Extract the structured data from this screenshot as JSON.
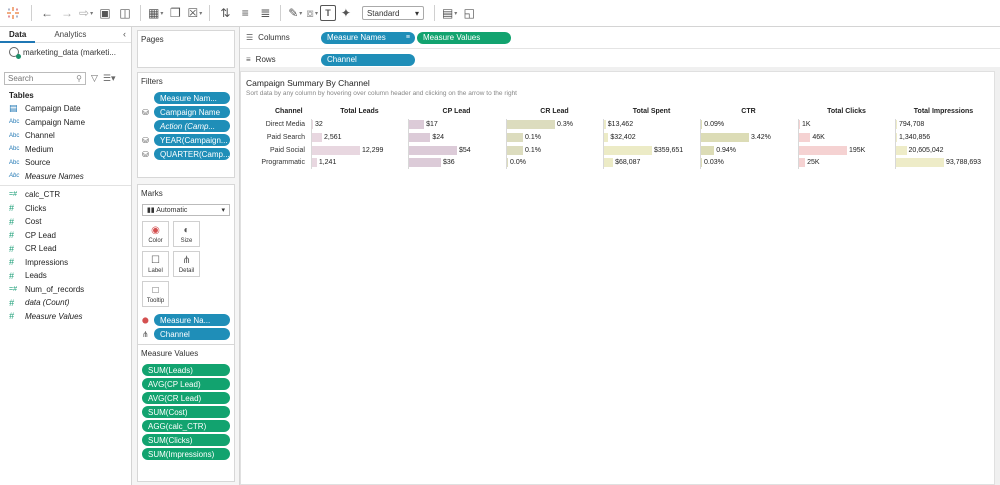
{
  "toolbar": {
    "fit_select": "Standard"
  },
  "data_pane": {
    "tabs": [
      "Data",
      "Analytics"
    ],
    "datasource": "marketing_data (marketi...",
    "search_placeholder": "Search",
    "tables_label": "Tables",
    "dimensions": [
      {
        "type": "date",
        "name": "Campaign Date",
        "italic": false
      },
      {
        "type": "Abc",
        "name": "Campaign Name",
        "italic": false
      },
      {
        "type": "Abc",
        "name": "Channel",
        "italic": false
      },
      {
        "type": "Abc",
        "name": "Medium",
        "italic": false
      },
      {
        "type": "Abc",
        "name": "Source",
        "italic": false
      },
      {
        "type": "Abc",
        "name": "Measure Names",
        "italic": true
      }
    ],
    "measures": [
      {
        "type": "=#",
        "name": "calc_CTR",
        "italic": false
      },
      {
        "type": "#",
        "name": "Clicks",
        "italic": false
      },
      {
        "type": "#",
        "name": "Cost",
        "italic": false
      },
      {
        "type": "#",
        "name": "CP Lead",
        "italic": false
      },
      {
        "type": "#",
        "name": "CR Lead",
        "italic": false
      },
      {
        "type": "#",
        "name": "Impressions",
        "italic": false
      },
      {
        "type": "#",
        "name": "Leads",
        "italic": false
      },
      {
        "type": "=#",
        "name": "Num_of_records",
        "italic": false
      },
      {
        "type": "#",
        "name": "data (Count)",
        "italic": true
      },
      {
        "type": "#",
        "name": "Measure Values",
        "italic": true
      }
    ]
  },
  "pages_label": "Pages",
  "filters": {
    "label": "Filters",
    "pills": [
      {
        "text": "Measure Nam...",
        "italic": false,
        "icon": ""
      },
      {
        "text": "Campaign Name",
        "italic": false,
        "icon": "db"
      },
      {
        "text": "Action (Camp...",
        "italic": true,
        "icon": ""
      },
      {
        "text": "YEAR(Campaign...",
        "italic": false,
        "icon": "db"
      },
      {
        "text": "QUARTER(Camp...",
        "italic": false,
        "icon": "db"
      }
    ]
  },
  "marks": {
    "label": "Marks",
    "type": "Automatic",
    "buttons": [
      "Color",
      "Size",
      "Label",
      "Detail",
      "Tooltip"
    ],
    "pills": [
      {
        "text": "Measure Na...",
        "icon": "color"
      },
      {
        "text": "Channel",
        "icon": "detail"
      }
    ]
  },
  "measure_values": {
    "label": "Measure Values",
    "pills": [
      "SUM(Leads)",
      "AVG(CP Lead)",
      "AVG(CR Lead)",
      "SUM(Cost)",
      "AGG(calc_CTR)",
      "SUM(Clicks)",
      "SUM(Impressions)"
    ]
  },
  "shelves": {
    "columns_label": "Columns",
    "rows_label": "Rows",
    "columns": [
      {
        "text": "Measure Names",
        "color": "blue"
      },
      {
        "text": "Measure Values",
        "color": "green"
      }
    ],
    "rows": [
      {
        "text": "Channel",
        "color": "blue"
      }
    ]
  },
  "chart_data": {
    "type": "bar",
    "title": "Campaign Summary By Channel",
    "subtitle": "Sort data by any column by hovering over column header and clicking on the arrow to the right",
    "row_header": "Channel",
    "categories": [
      "Direct Media",
      "Paid Search",
      "Paid Social",
      "Programmatic"
    ],
    "series": [
      {
        "name": "Total Leads",
        "color": "#e8d7e0",
        "values": [
          32,
          2561,
          12299,
          1241
        ],
        "labels": [
          "32",
          "2,561",
          "12,299",
          "1,241"
        ],
        "max": 12299
      },
      {
        "name": "CP Lead",
        "color": "#dccbd8",
        "values": [
          17,
          24,
          54,
          36
        ],
        "labels": [
          "$17",
          "$24",
          "$54",
          "$36"
        ],
        "max": 54
      },
      {
        "name": "CR Lead",
        "color": "#dcdcbe",
        "values": [
          0.3,
          0.1,
          0.1,
          0.0
        ],
        "labels": [
          "0.3%",
          "0.1%",
          "0.1%",
          "0.0%"
        ],
        "max": 0.3
      },
      {
        "name": "Total Spent",
        "color": "#ecebc6",
        "values": [
          13462,
          32402,
          359651,
          68087
        ],
        "labels": [
          "$13,462",
          "$32,402",
          "$359,651",
          "$68,087"
        ],
        "max": 359651
      },
      {
        "name": "CTR",
        "color": "#dcdcb6",
        "values": [
          0.09,
          3.42,
          0.94,
          0.03
        ],
        "labels": [
          "0.09%",
          "3.42%",
          "0.94%",
          "0.03%"
        ],
        "max": 3.42
      },
      {
        "name": "Total Clicks",
        "color": "#f5d2d2",
        "values": [
          1000,
          46000,
          195000,
          25000
        ],
        "labels": [
          "1K",
          "46K",
          "195K",
          "25K"
        ],
        "max": 195000
      },
      {
        "name": "Total Impressions",
        "color": "#eeecc8",
        "values": [
          794708,
          1340856,
          20605042,
          93788693
        ],
        "labels": [
          "794,708",
          "1,340,856",
          "20,605,042",
          "93,788,693"
        ],
        "max": 93788693
      }
    ]
  }
}
